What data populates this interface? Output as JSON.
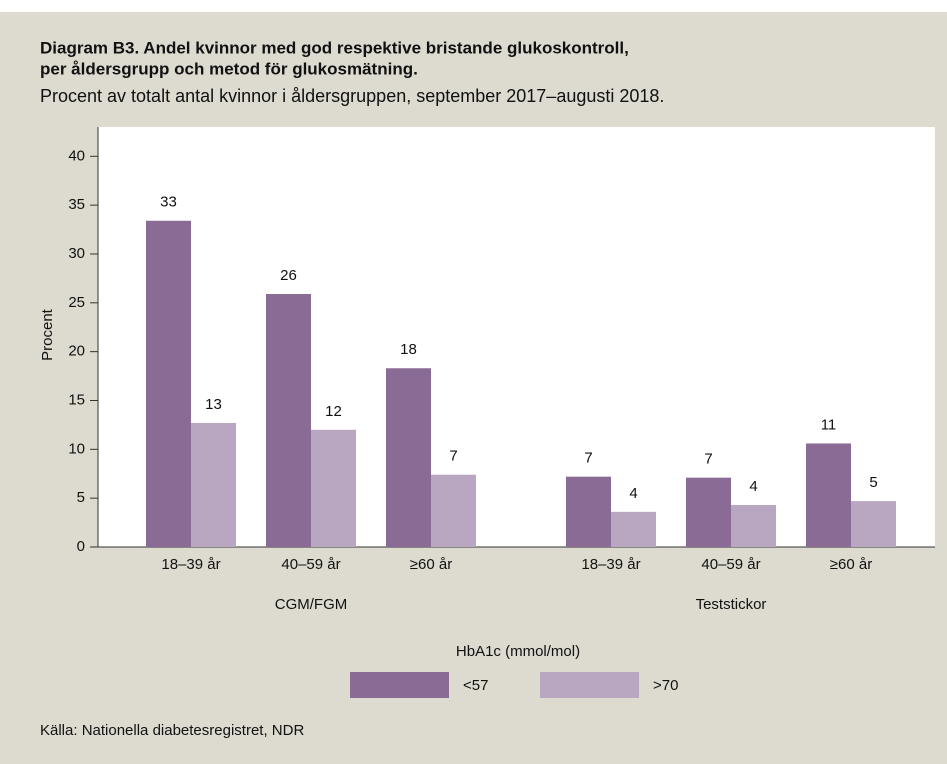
{
  "chart_data": {
    "type": "bar",
    "title": [
      "Diagram B3. Andel kvinnor med god respektive bristande glukoskontroll,",
      "per åldersgrupp och metod för glukosmätning."
    ],
    "subtitle": "Procent av totalt antal kvinnor i åldersgruppen, september 2017–augusti 2018.",
    "ylabel": "Procent",
    "categories": [
      "18–39 år",
      "40–59 år",
      "≥60 år",
      "18–39 år",
      "40–59 år",
      "≥60 år"
    ],
    "groups": [
      "CGM/FGM",
      "Teststickor"
    ],
    "series": [
      {
        "name": "<57",
        "color": "#8a6b95",
        "values": [
          33.4,
          25.9,
          18.3,
          7.2,
          7.1,
          10.6
        ],
        "value_labels": [
          "33",
          "26",
          "18",
          "7",
          "7",
          "11"
        ]
      },
      {
        "name": ">70",
        "color": "#b9a6c0",
        "values": [
          12.7,
          12.0,
          7.4,
          3.6,
          4.3,
          4.7
        ],
        "value_labels": [
          "13",
          "12",
          "7",
          "4",
          "4",
          "5"
        ]
      }
    ],
    "legend_title": "HbA1c (mmol/mol)",
    "ylim": [
      0,
      43
    ],
    "yticks": [
      0,
      5,
      10,
      15,
      20,
      25,
      30,
      35,
      40
    ],
    "source": "Källa: Nationella diabetesregistret, NDR"
  }
}
